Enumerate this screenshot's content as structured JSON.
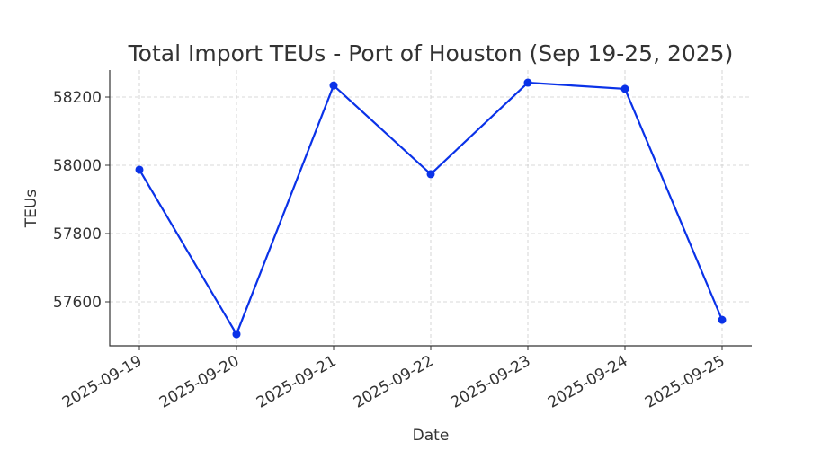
{
  "chart_data": {
    "type": "line",
    "title": "Total Import TEUs - Port of Houston (Sep 19-25, 2025)",
    "x_label": "Date",
    "y_label": "TEUs",
    "categories": [
      "2025-09-19",
      "2025-09-20",
      "2025-09-21",
      "2025-09-22",
      "2025-09-23",
      "2025-09-24",
      "2025-09-25"
    ],
    "series": [
      {
        "name": "TEUs",
        "color": "#0a32e8",
        "values": [
          57987,
          57505,
          58234,
          57974,
          58242,
          58224,
          57547
        ]
      }
    ],
    "ylim": [
      57471,
      58279
    ],
    "yticks": [
      57600,
      57800,
      58000,
      58200
    ],
    "grid": true
  }
}
